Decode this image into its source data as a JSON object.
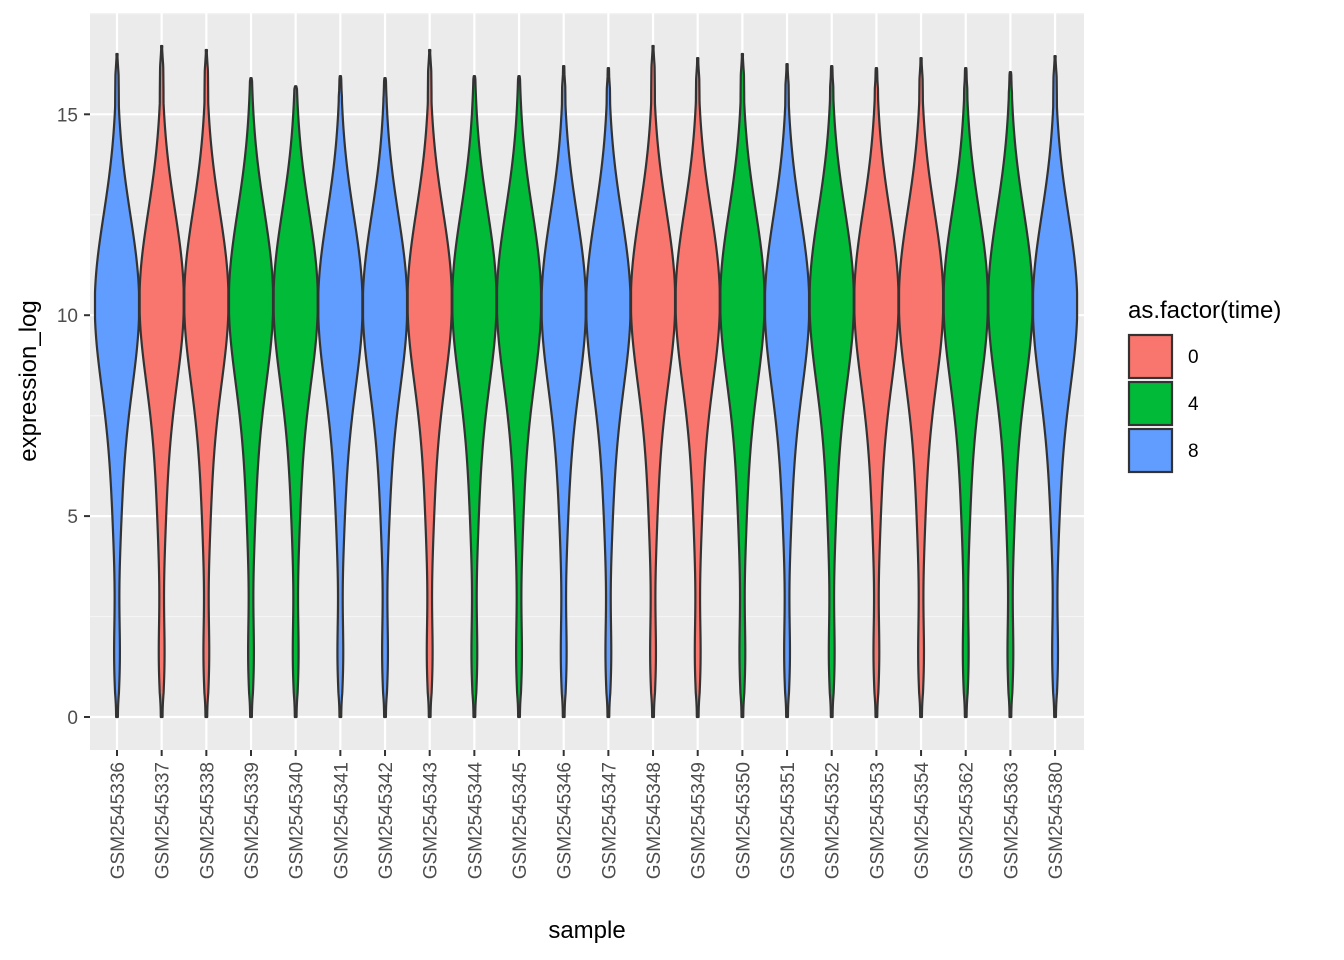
{
  "chart_data": {
    "type": "violin",
    "xlabel": "sample",
    "ylabel": "expression_log",
    "ylim": [
      -0.8,
      17.5
    ],
    "y_ticks": [
      0,
      5,
      10,
      15
    ],
    "y_tick_labels": [
      "0",
      "5",
      "10",
      "15"
    ],
    "grid": true,
    "legend": {
      "title": "as.factor(time)",
      "placement": "right",
      "entries": [
        {
          "label": "0",
          "color": "#F8766D"
        },
        {
          "label": "4",
          "color": "#00BA38"
        },
        {
          "label": "8",
          "color": "#619CFF"
        }
      ]
    },
    "categories": [
      "GSM2545336",
      "GSM2545337",
      "GSM2545338",
      "GSM2545339",
      "GSM2545340",
      "GSM2545341",
      "GSM2545342",
      "GSM2545343",
      "GSM2545344",
      "GSM2545345",
      "GSM2545346",
      "GSM2545347",
      "GSM2545348",
      "GSM2545349",
      "GSM2545350",
      "GSM2545351",
      "GSM2545352",
      "GSM2545353",
      "GSM2545354",
      "GSM2545362",
      "GSM2545363",
      "GSM2545380"
    ],
    "time": [
      "8",
      "0",
      "0",
      "4",
      "4",
      "8",
      "8",
      "0",
      "4",
      "4",
      "8",
      "8",
      "0",
      "0",
      "4",
      "8",
      "4",
      "0",
      "0",
      "4",
      "4",
      "8"
    ],
    "min": [
      0,
      0,
      0,
      0,
      0,
      0,
      0,
      0,
      0,
      0,
      0,
      0,
      0,
      0,
      0,
      0,
      0,
      0,
      0,
      0,
      0,
      0
    ],
    "max": [
      16.5,
      16.7,
      16.6,
      15.9,
      15.7,
      15.95,
      15.9,
      16.6,
      15.95,
      15.95,
      16.2,
      16.15,
      16.7,
      16.4,
      16.5,
      16.25,
      16.2,
      16.15,
      16.4,
      16.15,
      16.05,
      16.45
    ],
    "median": [
      10.3,
      10.4,
      10.4,
      10.4,
      10.4,
      10.3,
      10.3,
      10.4,
      10.4,
      10.4,
      10.3,
      10.3,
      10.4,
      10.4,
      10.4,
      10.3,
      10.4,
      10.4,
      10.4,
      10.4,
      10.4,
      10.3
    ]
  },
  "colors": {
    "panel_bg": "#EBEBEB",
    "grid_major": "#FFFFFF",
    "grid_minor": "#F5F5F5",
    "outline": "#333333",
    "tick_color": "#333333",
    "time_colors": {
      "0": "#F8766D",
      "4": "#00BA38",
      "8": "#619CFF"
    }
  }
}
